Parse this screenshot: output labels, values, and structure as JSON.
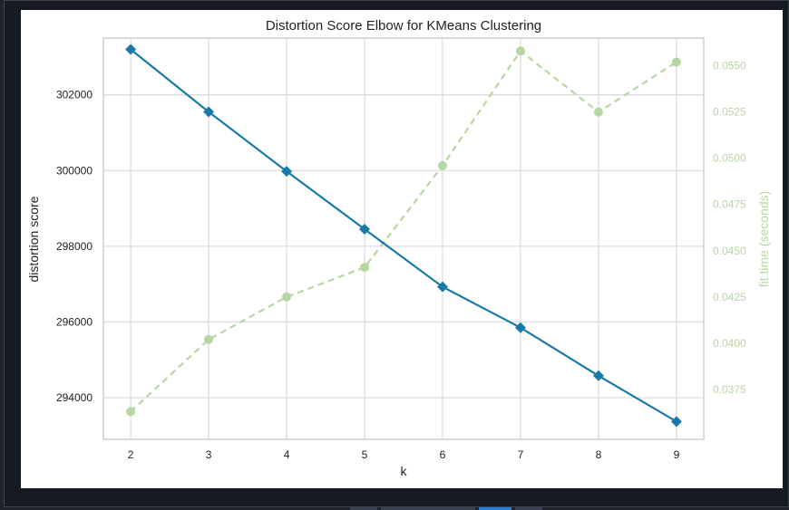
{
  "chart_data": {
    "type": "line",
    "title": "Distortion Score Elbow for KMeans Clustering",
    "xlabel": "k",
    "ylabel": "distortion score",
    "y2label": "fit time (seconds)",
    "x": [
      2,
      3,
      4,
      5,
      6,
      7,
      8,
      9
    ],
    "xlim": [
      1.65,
      9.35
    ],
    "ylim": [
      292900,
      303500
    ],
    "y2lim": [
      0.0348,
      0.0565
    ],
    "yticks": [
      294000,
      296000,
      298000,
      300000,
      302000
    ],
    "y2ticks": [
      0.0375,
      0.04,
      0.0425,
      0.045,
      0.0475,
      0.05,
      0.0525,
      0.055
    ],
    "grid": true,
    "series": [
      {
        "axis": "left",
        "color": "#1a7aa7",
        "style": "solid",
        "marker": "diamond",
        "values": [
          303200,
          301550,
          299980,
          298450,
          296930,
          295850,
          294580,
          293370
        ]
      },
      {
        "axis": "right",
        "color": "#b6d7a1",
        "style": "dashed",
        "marker": "circle",
        "values": [
          0.0363,
          0.0402,
          0.0425,
          0.0441,
          0.0496,
          0.0558,
          0.0525,
          0.0552
        ]
      }
    ]
  }
}
